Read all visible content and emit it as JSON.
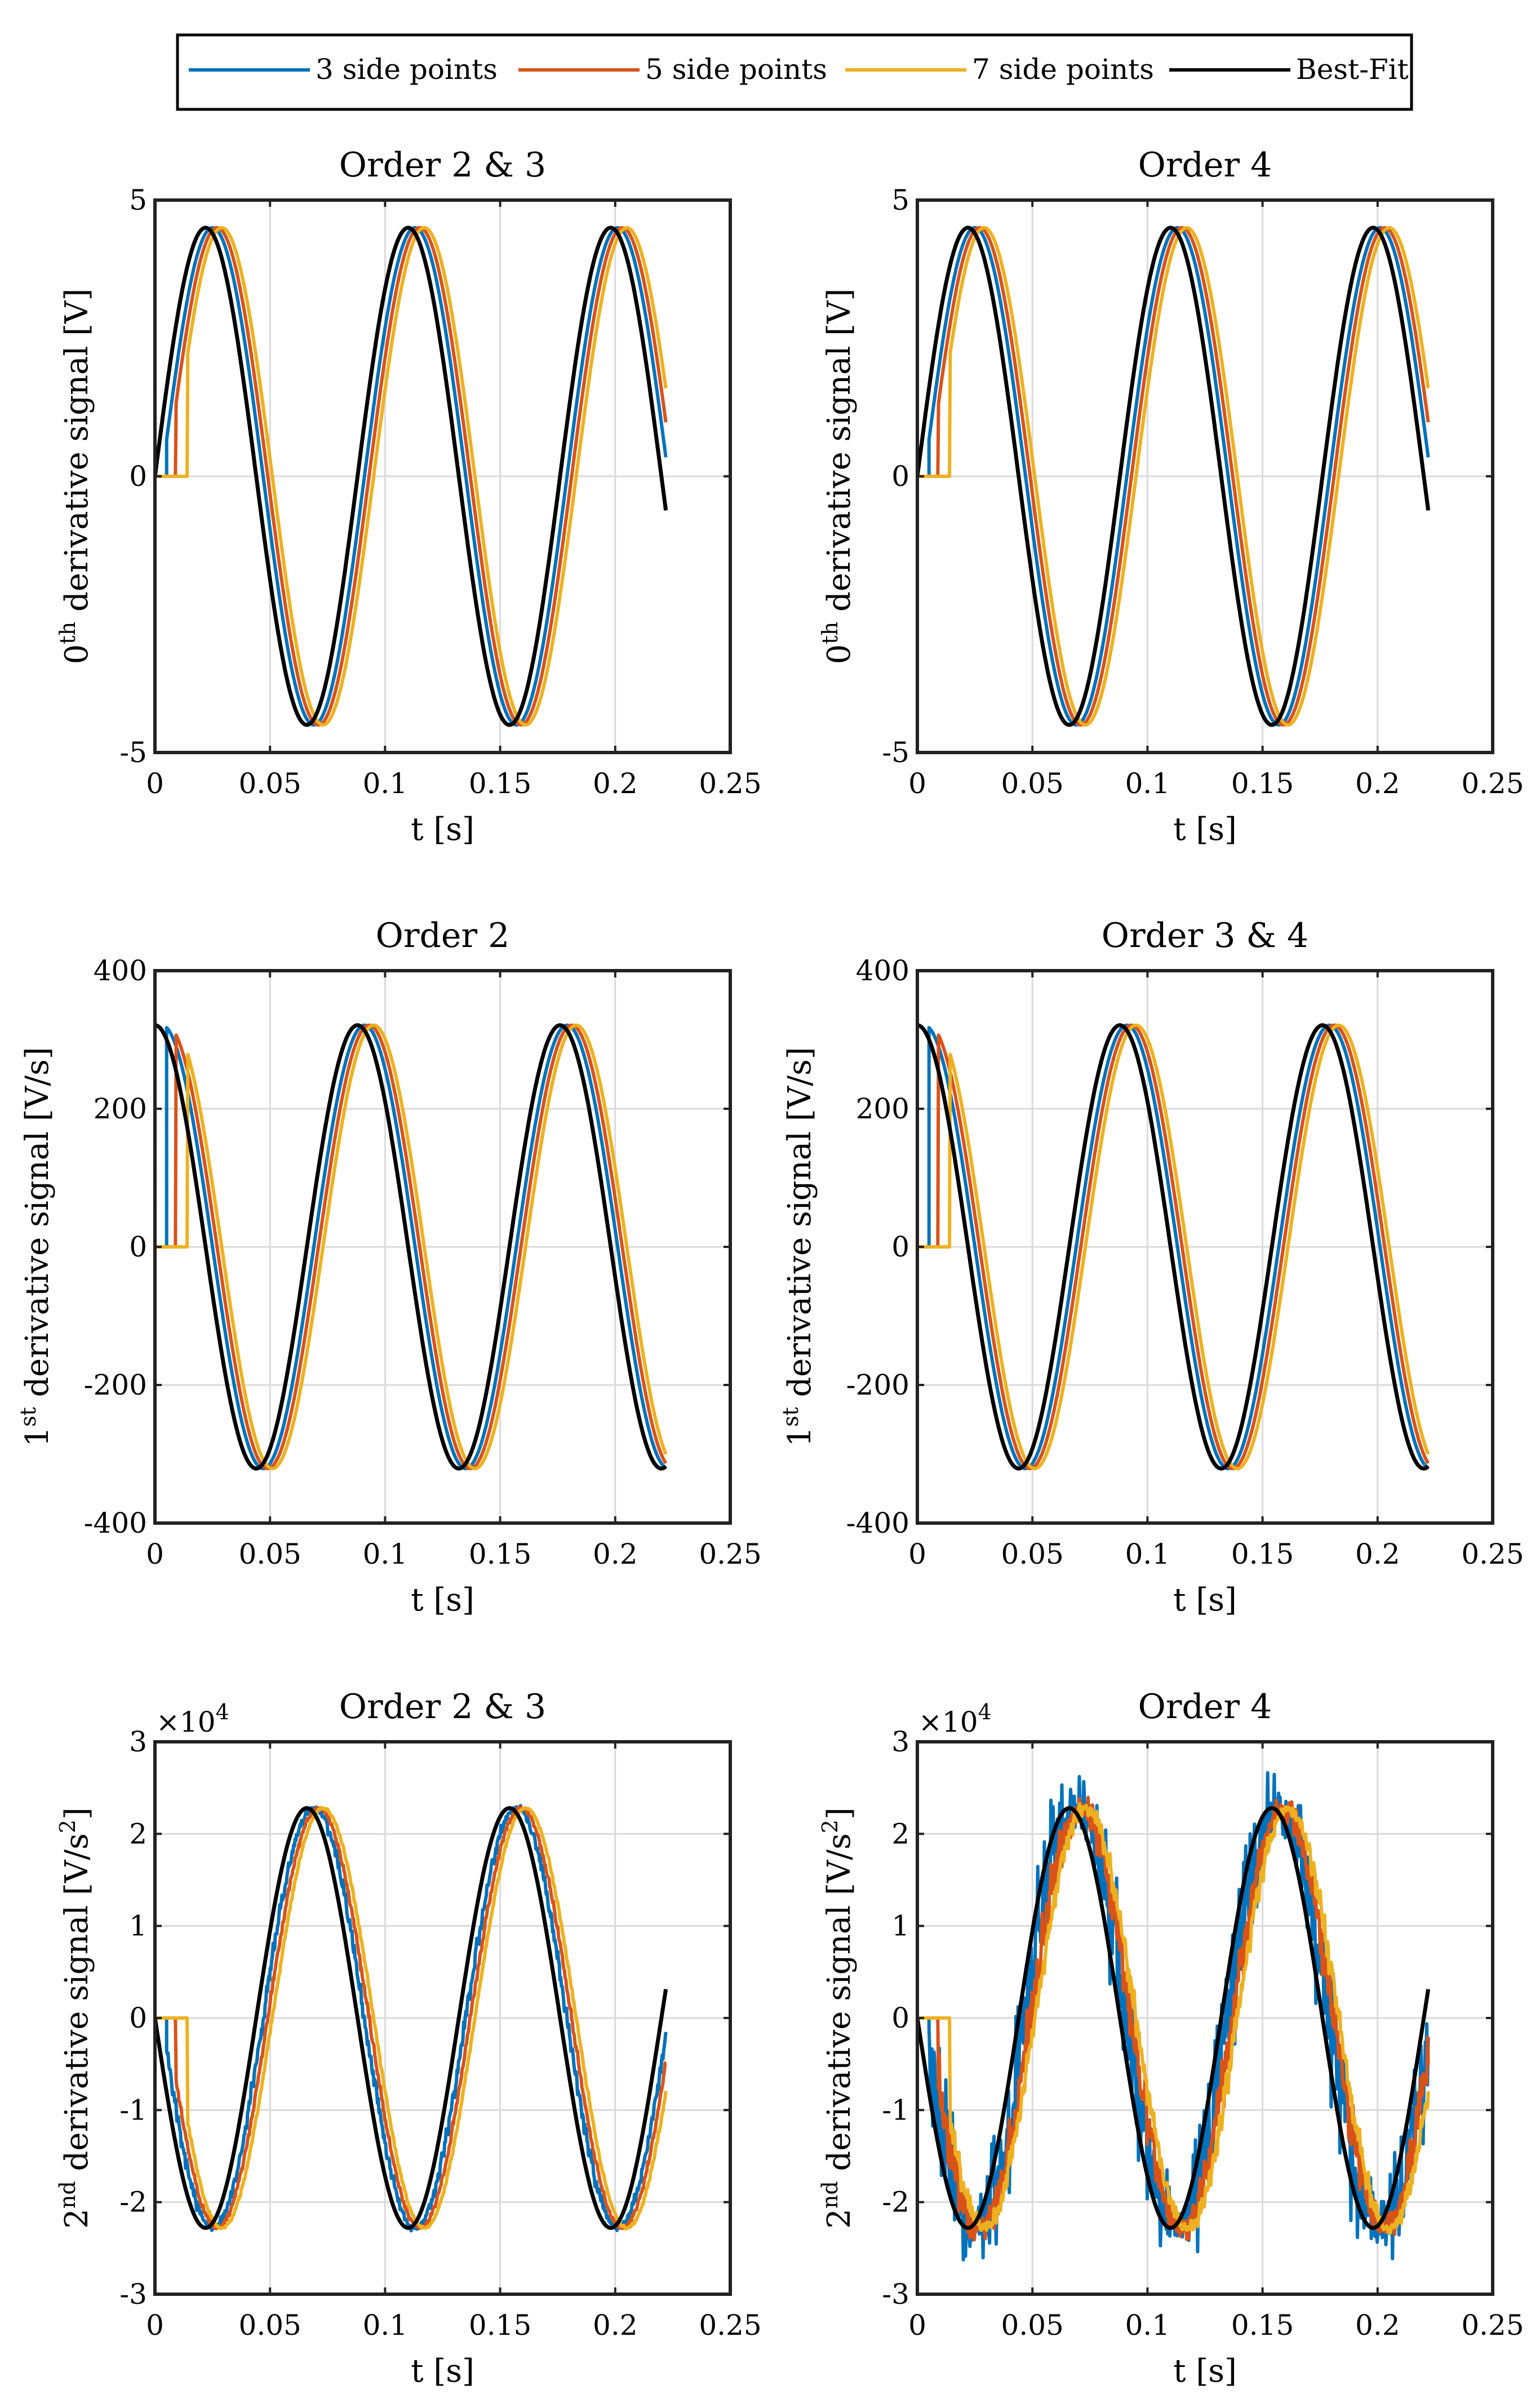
{
  "legend": {
    "placement": "top-center",
    "entries": [
      {
        "name": "3 side points",
        "color": "#0072BD"
      },
      {
        "name": "5 side points",
        "color": "#D95319"
      },
      {
        "name": "7 side points",
        "color": "#EDB120"
      },
      {
        "name": "Best-Fit",
        "color": "#000000"
      }
    ]
  },
  "chart_data": [
    {
      "type": "line",
      "title": "Order 2 & 3",
      "xlabel": "t [s]",
      "ylabel": {
        "base": "0",
        "sup": "th",
        "rest": " derivative signal [V]"
      },
      "xlim": [
        0,
        0.25
      ],
      "ylim": [
        -5,
        5
      ],
      "xticks": [
        0,
        0.05,
        0.1,
        0.15,
        0.2,
        0.25
      ],
      "xtick_labels": [
        "0",
        "0.05",
        "0.1",
        "0.15",
        "0.2",
        "0.25"
      ],
      "yticks": [
        -5,
        0,
        5
      ],
      "ytick_labels": [
        "-5",
        "0",
        "5"
      ],
      "grid": true,
      "exponent": null,
      "signal": {
        "kind": "sine",
        "amplitude": 4.5,
        "frequency_hz": 11.36,
        "phase_deg": 0,
        "t_end": 0.222
      },
      "series": [
        {
          "name": "3 side points",
          "delay_s": 0.003,
          "start_s": 0.005,
          "noise": 0
        },
        {
          "name": "5 side points",
          "delay_s": 0.005,
          "start_s": 0.009,
          "noise": 0
        },
        {
          "name": "7 side points",
          "delay_s": 0.007,
          "start_s": 0.014,
          "noise": 0
        },
        {
          "name": "Best-Fit",
          "delay_s": 0,
          "start_s": 0,
          "noise": 0
        }
      ]
    },
    {
      "type": "line",
      "title": "Order 4",
      "xlabel": "t [s]",
      "ylabel": {
        "base": "0",
        "sup": "th",
        "rest": " derivative signal [V]"
      },
      "xlim": [
        0,
        0.25
      ],
      "ylim": [
        -5,
        5
      ],
      "xticks": [
        0,
        0.05,
        0.1,
        0.15,
        0.2,
        0.25
      ],
      "xtick_labels": [
        "0",
        "0.05",
        "0.1",
        "0.15",
        "0.2",
        "0.25"
      ],
      "yticks": [
        -5,
        0,
        5
      ],
      "ytick_labels": [
        "-5",
        "0",
        "5"
      ],
      "grid": true,
      "exponent": null,
      "signal": {
        "kind": "sine",
        "amplitude": 4.5,
        "frequency_hz": 11.36,
        "phase_deg": 0,
        "t_end": 0.222
      },
      "series": [
        {
          "name": "3 side points",
          "delay_s": 0.003,
          "start_s": 0.005,
          "noise": 0
        },
        {
          "name": "5 side points",
          "delay_s": 0.005,
          "start_s": 0.009,
          "noise": 0
        },
        {
          "name": "7 side points",
          "delay_s": 0.007,
          "start_s": 0.014,
          "noise": 0
        },
        {
          "name": "Best-Fit",
          "delay_s": 0,
          "start_s": 0,
          "noise": 0
        }
      ]
    },
    {
      "type": "line",
      "title": "Order 2",
      "xlabel": "t [s]",
      "ylabel": {
        "base": "1",
        "sup": "st",
        "rest": " derivative signal [V/s]"
      },
      "xlim": [
        0,
        0.25
      ],
      "ylim": [
        -400,
        400
      ],
      "xticks": [
        0,
        0.05,
        0.1,
        0.15,
        0.2,
        0.25
      ],
      "xtick_labels": [
        "0",
        "0.05",
        "0.1",
        "0.15",
        "0.2",
        "0.25"
      ],
      "yticks": [
        -400,
        -200,
        0,
        200,
        400
      ],
      "ytick_labels": [
        "-400",
        "-200",
        "0",
        "200",
        "400"
      ],
      "grid": true,
      "exponent": null,
      "signal": {
        "kind": "sine",
        "amplitude": 321,
        "frequency_hz": 11.36,
        "phase_deg": 90,
        "t_end": 0.222
      },
      "series": [
        {
          "name": "3 side points",
          "delay_s": 0.003,
          "start_s": 0.005,
          "noise": 0
        },
        {
          "name": "5 side points",
          "delay_s": 0.005,
          "start_s": 0.009,
          "noise": 0
        },
        {
          "name": "7 side points",
          "delay_s": 0.007,
          "start_s": 0.014,
          "noise": 0
        },
        {
          "name": "Best-Fit",
          "delay_s": 0,
          "start_s": 0,
          "noise": 0
        }
      ]
    },
    {
      "type": "line",
      "title": "Order 3 & 4",
      "xlabel": "t [s]",
      "ylabel": {
        "base": "1",
        "sup": "st",
        "rest": " derivative signal [V/s]"
      },
      "xlim": [
        0,
        0.25
      ],
      "ylim": [
        -400,
        400
      ],
      "xticks": [
        0,
        0.05,
        0.1,
        0.15,
        0.2,
        0.25
      ],
      "xtick_labels": [
        "0",
        "0.05",
        "0.1",
        "0.15",
        "0.2",
        "0.25"
      ],
      "yticks": [
        -400,
        -200,
        0,
        200,
        400
      ],
      "ytick_labels": [
        "-400",
        "-200",
        "0",
        "200",
        "400"
      ],
      "grid": true,
      "exponent": null,
      "signal": {
        "kind": "sine",
        "amplitude": 321,
        "frequency_hz": 11.36,
        "phase_deg": 90,
        "t_end": 0.222
      },
      "series": [
        {
          "name": "3 side points",
          "delay_s": 0.003,
          "start_s": 0.005,
          "noise": 0
        },
        {
          "name": "5 side points",
          "delay_s": 0.005,
          "start_s": 0.009,
          "noise": 0
        },
        {
          "name": "7 side points",
          "delay_s": 0.007,
          "start_s": 0.014,
          "noise": 0
        },
        {
          "name": "Best-Fit",
          "delay_s": 0,
          "start_s": 0,
          "noise": 0
        }
      ]
    },
    {
      "type": "line",
      "title": "Order 2 & 3",
      "xlabel": "t [s]",
      "ylabel": {
        "base": "2",
        "sup": "nd",
        "rest": " derivative signal [V/s",
        "sup2": "2",
        "end": "]"
      },
      "xlim": [
        0,
        0.25
      ],
      "ylim": [
        -3,
        3
      ],
      "xticks": [
        0,
        0.05,
        0.1,
        0.15,
        0.2,
        0.25
      ],
      "xtick_labels": [
        "0",
        "0.05",
        "0.1",
        "0.15",
        "0.2",
        "0.25"
      ],
      "yticks": [
        -3,
        -2,
        -1,
        0,
        1,
        2,
        3
      ],
      "ytick_labels": [
        "-3",
        "-2",
        "-1",
        "0",
        "1",
        "2",
        "3"
      ],
      "grid": true,
      "exponent": {
        "base": "×10",
        "power": "4"
      },
      "signal": {
        "kind": "sine",
        "amplitude": 2.28,
        "frequency_hz": 11.36,
        "phase_deg": 180,
        "t_end": 0.222
      },
      "series": [
        {
          "name": "3 side points",
          "delay_s": 0.003,
          "start_s": 0.005,
          "noise": 0.06
        },
        {
          "name": "5 side points",
          "delay_s": 0.005,
          "start_s": 0.009,
          "noise": 0.03
        },
        {
          "name": "7 side points",
          "delay_s": 0.007,
          "start_s": 0.014,
          "noise": 0.02
        },
        {
          "name": "Best-Fit",
          "delay_s": 0,
          "start_s": 0,
          "noise": 0
        }
      ]
    },
    {
      "type": "line",
      "title": "Order 4",
      "xlabel": "t [s]",
      "ylabel": {
        "base": "2",
        "sup": "nd",
        "rest": " derivative signal [V/s",
        "sup2": "2",
        "end": "]"
      },
      "xlim": [
        0,
        0.25
      ],
      "ylim": [
        -3,
        3
      ],
      "xticks": [
        0,
        0.05,
        0.1,
        0.15,
        0.2,
        0.25
      ],
      "xtick_labels": [
        "0",
        "0.05",
        "0.1",
        "0.15",
        "0.2",
        "0.25"
      ],
      "yticks": [
        -3,
        -2,
        -1,
        0,
        1,
        2,
        3
      ],
      "ytick_labels": [
        "-3",
        "-2",
        "-1",
        "0",
        "1",
        "2",
        "3"
      ],
      "grid": true,
      "exponent": {
        "base": "×10",
        "power": "4"
      },
      "signal": {
        "kind": "sine",
        "amplitude": 2.28,
        "frequency_hz": 11.36,
        "phase_deg": 180,
        "t_end": 0.222
      },
      "series": [
        {
          "name": "3 side points",
          "delay_s": 0.003,
          "start_s": 0.005,
          "noise": 0.45
        },
        {
          "name": "5 side points",
          "delay_s": 0.005,
          "start_s": 0.009,
          "noise": 0.18
        },
        {
          "name": "7 side points",
          "delay_s": 0.007,
          "start_s": 0.014,
          "noise": 0.1
        },
        {
          "name": "Best-Fit",
          "delay_s": 0,
          "start_s": 0,
          "noise": 0
        }
      ]
    }
  ]
}
